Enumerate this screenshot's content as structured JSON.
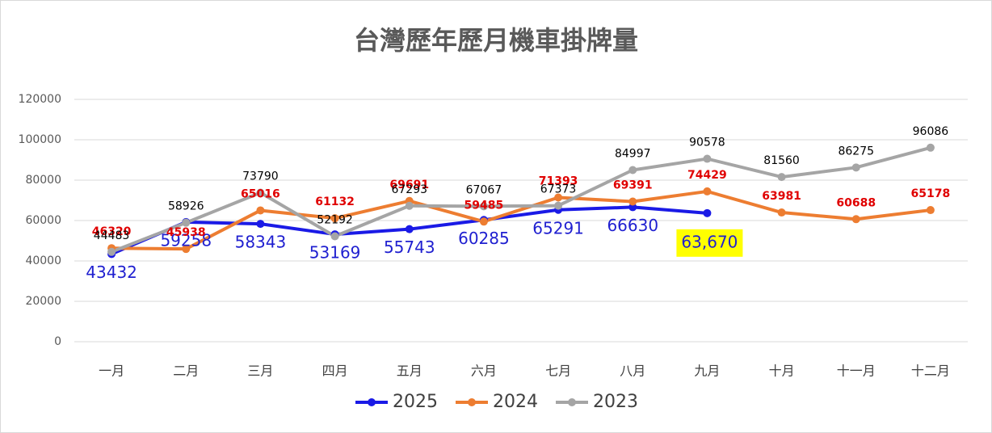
{
  "chart_data": {
    "type": "line",
    "title": "台灣歷年歷月機車掛牌量",
    "categories": [
      "一月",
      "二月",
      "三月",
      "四月",
      "五月",
      "六月",
      "七月",
      "八月",
      "九月",
      "十月",
      "十一月",
      "十二月"
    ],
    "series": [
      {
        "name": "2025",
        "color": "#1a1ae6",
        "values": [
          43432,
          59258,
          58343,
          53169,
          55743,
          60285,
          65291,
          66630,
          63670,
          null,
          null,
          null
        ],
        "value_labels": [
          "43432",
          "59258",
          "58343",
          "53169",
          "55743",
          "60285",
          "65291",
          "66630",
          "63,670",
          null,
          null,
          null
        ]
      },
      {
        "name": "2024",
        "color": "#ed7d31",
        "values": [
          46320,
          45938,
          65016,
          61132,
          69691,
          59485,
          71393,
          69391,
          74429,
          63981,
          60688,
          65178
        ]
      },
      {
        "name": "2023",
        "color": "#a5a5a5",
        "values": [
          44483,
          58926,
          73790,
          52192,
          67293,
          67067,
          67373,
          84997,
          90578,
          81560,
          86275,
          96086
        ]
      }
    ],
    "ylim": [
      0,
      120000
    ],
    "yticks": [
      0,
      20000,
      40000,
      60000,
      80000,
      100000,
      120000
    ],
    "grid": true,
    "legend": "bottom"
  }
}
